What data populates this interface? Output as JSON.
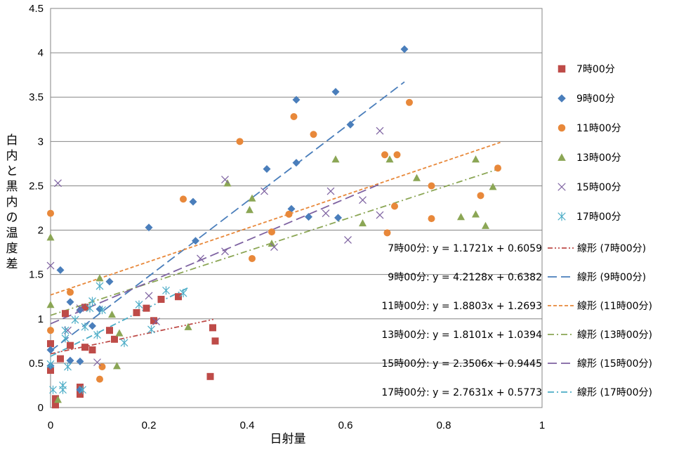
{
  "chart_data": {
    "type": "scatter",
    "title": "",
    "xlabel": "日射量",
    "ylabel": "白内と黒内の温度差",
    "xlim": [
      0,
      1
    ],
    "ylim": [
      0,
      4.5
    ],
    "x_ticks": [
      "0",
      "0.2",
      "0.4",
      "0.6",
      "0.8",
      "1"
    ],
    "y_ticks": [
      "0",
      "0.5",
      "1",
      "1.5",
      "2",
      "2.5",
      "3",
      "3.5",
      "4",
      "4.5"
    ],
    "grid": "horizontal",
    "legend_position": "right",
    "series": [
      {
        "name": "7時00分",
        "marker": "square",
        "color": "#BE4B48",
        "points": [
          [
            0.0,
            0.42
          ],
          [
            0.0,
            0.72
          ],
          [
            0.01,
            0.1
          ],
          [
            0.01,
            0.03
          ],
          [
            0.02,
            0.55
          ],
          [
            0.03,
            1.06
          ],
          [
            0.04,
            0.7
          ],
          [
            0.06,
            0.23
          ],
          [
            0.06,
            0.15
          ],
          [
            0.07,
            1.13
          ],
          [
            0.07,
            0.68
          ],
          [
            0.085,
            0.65
          ],
          [
            0.12,
            0.87
          ],
          [
            0.13,
            0.77
          ],
          [
            0.175,
            1.07
          ],
          [
            0.195,
            1.12
          ],
          [
            0.21,
            0.98
          ],
          [
            0.225,
            1.22
          ],
          [
            0.26,
            1.25
          ],
          [
            0.325,
            0.35
          ],
          [
            0.33,
            0.9
          ],
          [
            0.335,
            0.75
          ]
        ],
        "trend": {
          "slope": 1.1721,
          "intercept": 0.6059,
          "x_range": [
            0,
            0.335
          ]
        }
      },
      {
        "name": "9時00分",
        "marker": "diamond",
        "color": "#4A7EBB",
        "points": [
          [
            0.0,
            0.47
          ],
          [
            0.0,
            0.65
          ],
          [
            0.02,
            1.55
          ],
          [
            0.04,
            1.19
          ],
          [
            0.04,
            0.53
          ],
          [
            0.06,
            0.52
          ],
          [
            0.06,
            0.2
          ],
          [
            0.06,
            1.1
          ],
          [
            0.085,
            0.92
          ],
          [
            0.1,
            1.11
          ],
          [
            0.12,
            1.42
          ],
          [
            0.2,
            2.03
          ],
          [
            0.29,
            2.32
          ],
          [
            0.295,
            1.88
          ],
          [
            0.44,
            2.69
          ],
          [
            0.49,
            2.24
          ],
          [
            0.5,
            3.47
          ],
          [
            0.5,
            2.76
          ],
          [
            0.525,
            2.15
          ],
          [
            0.58,
            3.56
          ],
          [
            0.585,
            2.14
          ],
          [
            0.61,
            3.19
          ],
          [
            0.72,
            4.04
          ]
        ],
        "trend": {
          "slope": 4.2128,
          "intercept": 0.6382,
          "x_range": [
            0,
            0.72
          ]
        }
      },
      {
        "name": "11時00分",
        "marker": "circle",
        "color": "#E8883A",
        "points": [
          [
            0.0,
            2.19
          ],
          [
            0.0,
            0.87
          ],
          [
            0.04,
            1.3
          ],
          [
            0.1,
            0.32
          ],
          [
            0.105,
            0.46
          ],
          [
            0.27,
            2.35
          ],
          [
            0.385,
            3.0
          ],
          [
            0.41,
            1.68
          ],
          [
            0.45,
            1.98
          ],
          [
            0.485,
            2.18
          ],
          [
            0.495,
            3.28
          ],
          [
            0.535,
            3.08
          ],
          [
            0.68,
            2.85
          ],
          [
            0.685,
            1.97
          ],
          [
            0.7,
            2.27
          ],
          [
            0.705,
            2.85
          ],
          [
            0.73,
            3.44
          ],
          [
            0.775,
            2.5
          ],
          [
            0.775,
            2.13
          ],
          [
            0.875,
            2.39
          ],
          [
            0.91,
            2.7
          ]
        ],
        "trend": {
          "slope": 1.8803,
          "intercept": 1.2693,
          "x_range": [
            0,
            0.915
          ]
        }
      },
      {
        "name": "13時00分",
        "marker": "triangle",
        "color": "#8BA655",
        "points": [
          [
            0.0,
            1.92
          ],
          [
            0.0,
            1.16
          ],
          [
            0.015,
            0.09
          ],
          [
            0.1,
            1.46
          ],
          [
            0.125,
            1.05
          ],
          [
            0.135,
            0.47
          ],
          [
            0.14,
            0.84
          ],
          [
            0.28,
            0.91
          ],
          [
            0.36,
            2.53
          ],
          [
            0.405,
            2.23
          ],
          [
            0.41,
            2.36
          ],
          [
            0.45,
            1.85
          ],
          [
            0.58,
            2.8
          ],
          [
            0.635,
            2.08
          ],
          [
            0.69,
            2.8
          ],
          [
            0.745,
            2.59
          ],
          [
            0.835,
            2.15
          ],
          [
            0.865,
            2.8
          ],
          [
            0.865,
            2.18
          ],
          [
            0.885,
            2.05
          ],
          [
            0.9,
            2.49
          ]
        ],
        "trend": {
          "slope": 1.8101,
          "intercept": 1.0394,
          "x_range": [
            0,
            0.915
          ]
        }
      },
      {
        "name": "15時00分",
        "marker": "x",
        "color": "#7E62A1",
        "points": [
          [
            0.0,
            1.6
          ],
          [
            0.015,
            2.53
          ],
          [
            0.035,
            0.87
          ],
          [
            0.06,
            1.12
          ],
          [
            0.095,
            0.51
          ],
          [
            0.2,
            1.26
          ],
          [
            0.215,
            0.97
          ],
          [
            0.305,
            1.68
          ],
          [
            0.355,
            2.57
          ],
          [
            0.355,
            1.76
          ],
          [
            0.435,
            2.44
          ],
          [
            0.455,
            1.81
          ],
          [
            0.56,
            2.19
          ],
          [
            0.57,
            2.44
          ],
          [
            0.605,
            1.89
          ],
          [
            0.635,
            2.34
          ],
          [
            0.67,
            3.12
          ],
          [
            0.67,
            2.17
          ]
        ],
        "trend": {
          "slope": 2.3506,
          "intercept": 0.9445,
          "x_range": [
            0,
            0.67
          ]
        }
      },
      {
        "name": "17時00分",
        "marker": "asterisk",
        "color": "#4BACC6",
        "points": [
          [
            0.0,
            0.49
          ],
          [
            0.005,
            0.2
          ],
          [
            0.025,
            0.25
          ],
          [
            0.025,
            0.2
          ],
          [
            0.03,
            0.87
          ],
          [
            0.03,
            0.78
          ],
          [
            0.035,
            0.46
          ],
          [
            0.05,
            0.99
          ],
          [
            0.065,
            0.2
          ],
          [
            0.07,
            0.91
          ],
          [
            0.08,
            1.12
          ],
          [
            0.085,
            1.2
          ],
          [
            0.095,
            0.82
          ],
          [
            0.1,
            1.37
          ],
          [
            0.105,
            1.1
          ],
          [
            0.15,
            0.73
          ],
          [
            0.18,
            1.16
          ],
          [
            0.205,
            0.88
          ],
          [
            0.235,
            1.32
          ],
          [
            0.27,
            1.29
          ]
        ],
        "trend": {
          "slope": 2.7631,
          "intercept": 0.5773,
          "x_range": [
            0,
            0.28
          ]
        }
      }
    ],
    "equations": [
      "7時00分: y = 1.1721x + 0.6059",
      "9時00分: y = 4.2128x + 0.6382",
      "11時00分: y = 1.8803x + 1.2693",
      "13時00分: y = 1.8101x + 1.0394",
      "15時00分: y = 2.3506x + 0.9445",
      "17時00分: y = 2.7631x + 0.5773"
    ],
    "trend_labels": [
      "線形 (7時00分)",
      "線形 (9時00分)",
      "線形 (11時00分)",
      "線形 (13時00分)",
      "線形 (15時00分)",
      "線形 (17時00分)"
    ],
    "trend_dash": [
      "dashdotdot",
      "longdash",
      "dash",
      "dashdot",
      "longdash",
      "dashdot"
    ]
  }
}
